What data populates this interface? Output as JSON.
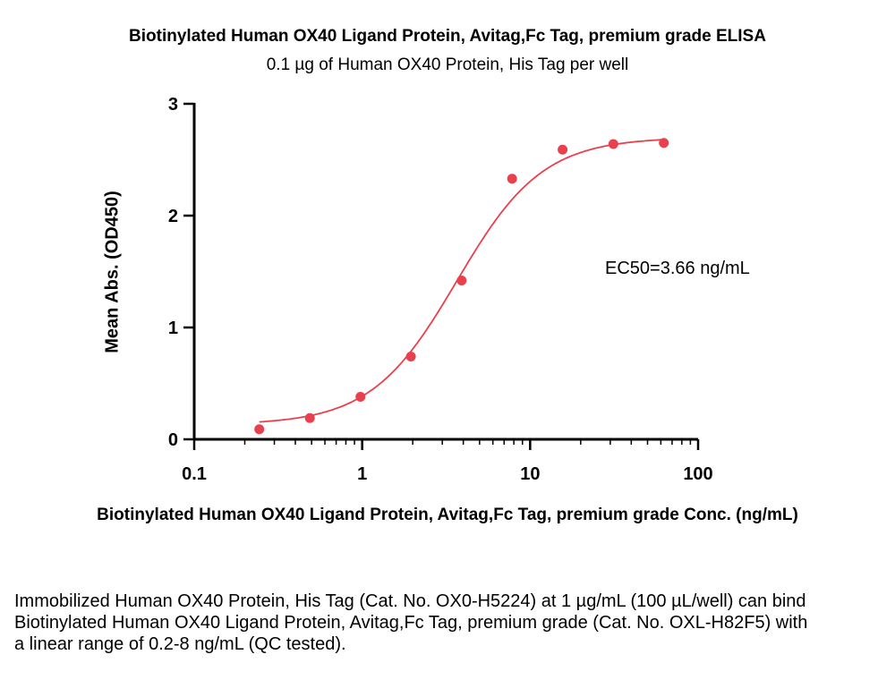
{
  "chart_data": {
    "type": "scatter",
    "title": "Biotinylated Human OX40 Ligand Protein, Avitag,Fc Tag, premium grade ELISA",
    "subtitle": "0.1 µg of Human OX40 Protein, His Tag per well",
    "xlabel": "Biotinylated Human OX40 Ligand Protein, Avitag,Fc Tag, premium grade Conc. (ng/mL)",
    "ylabel": "Mean Abs. (OD450)",
    "x_scale": "log",
    "xlim": [
      0.1,
      100
    ],
    "ylim": [
      0,
      3
    ],
    "x_ticks": [
      "0.1",
      "1",
      "10",
      "100"
    ],
    "y_ticks": [
      "0",
      "1",
      "2",
      "3"
    ],
    "annotation": "EC50=3.66 ng/mL",
    "color": "#e8414d",
    "points": [
      {
        "x": 0.244,
        "y": 0.09
      },
      {
        "x": 0.488,
        "y": 0.19
      },
      {
        "x": 0.977,
        "y": 0.38
      },
      {
        "x": 1.95,
        "y": 0.74
      },
      {
        "x": 3.91,
        "y": 1.42
      },
      {
        "x": 7.81,
        "y": 2.33
      },
      {
        "x": 15.6,
        "y": 2.59
      },
      {
        "x": 31.3,
        "y": 2.64
      },
      {
        "x": 62.5,
        "y": 2.65
      }
    ],
    "fit": {
      "model": "4PL",
      "bottom": 0.13,
      "top": 2.7,
      "ec50": 3.66,
      "hill": 1.7
    }
  },
  "note": "Immobilized Human OX40 Protein, His Tag (Cat. No. OX0-H5224) at 1 µg/mL (100 µL/well) can bind Biotinylated Human OX40 Ligand Protein, Avitag,Fc Tag, premium grade (Cat. No. OXL-H82F5) with a linear range of 0.2-8 ng/mL (QC tested)."
}
